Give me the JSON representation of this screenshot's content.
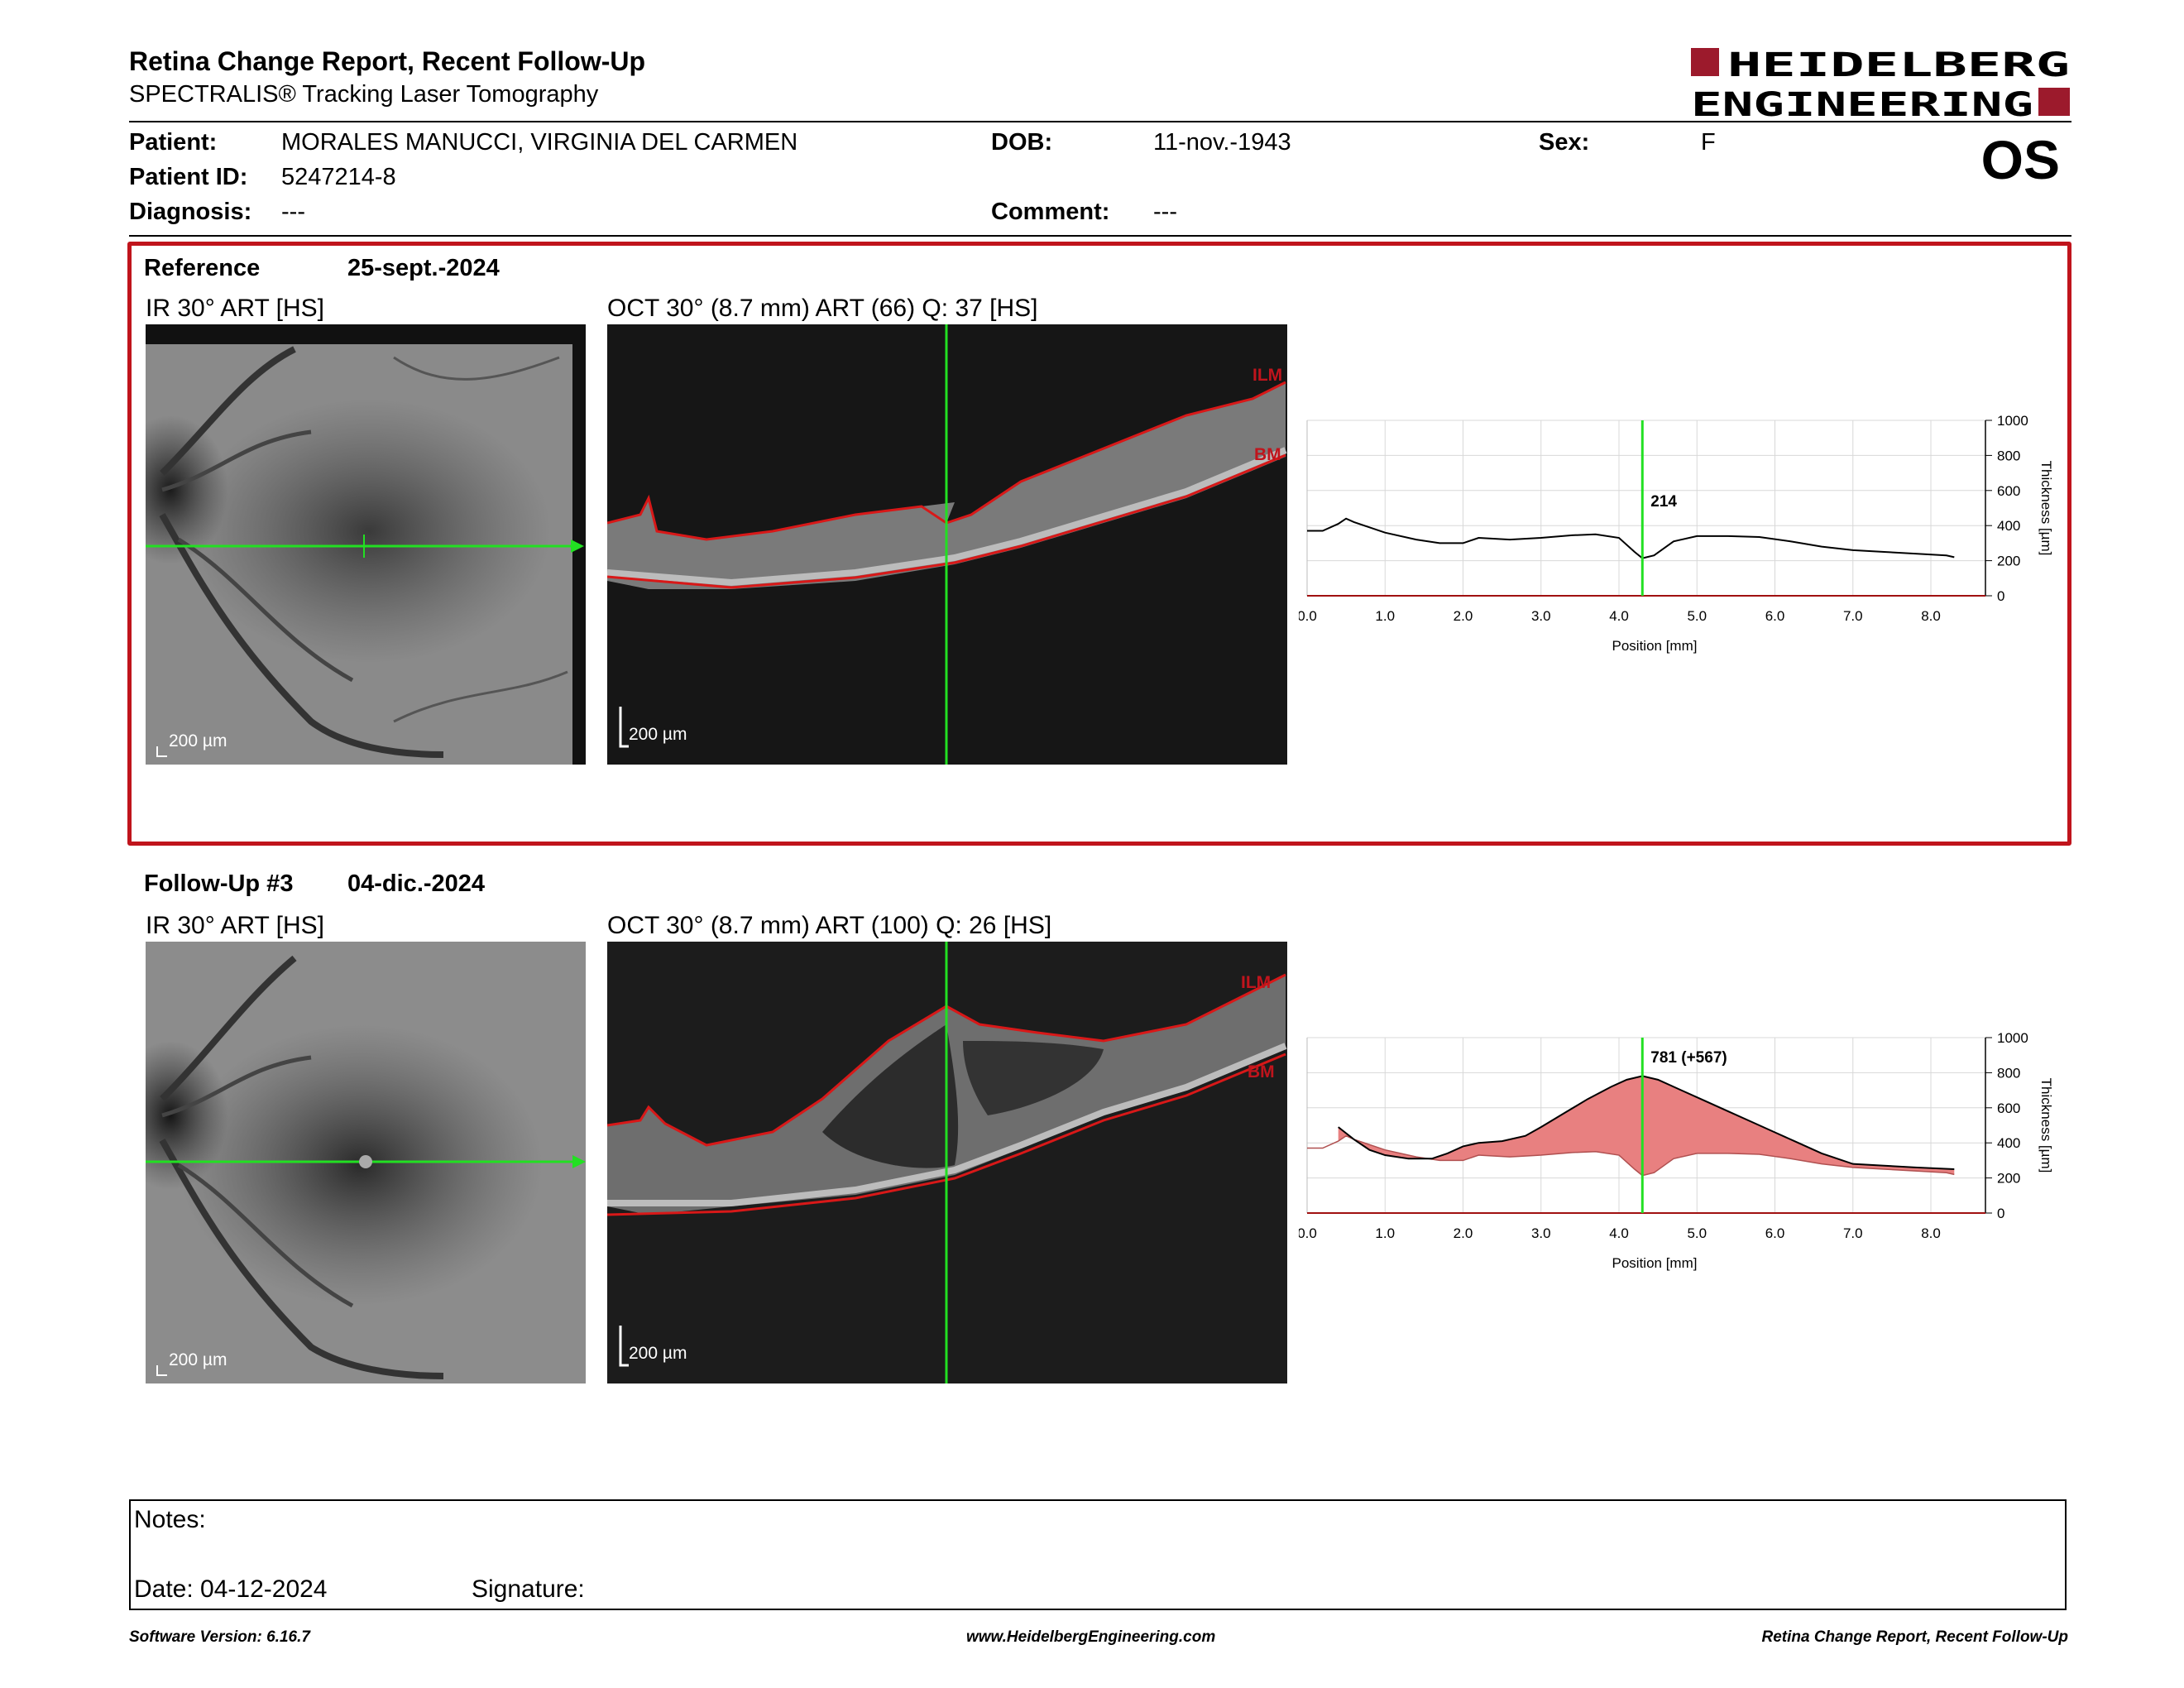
{
  "header": {
    "title": "Retina Change Report, Recent Follow-Up",
    "subtitle": "SPECTRALIS® Tracking Laser Tomography",
    "logo_line1": "HEIDELBERG",
    "logo_line2": "ENGINEERING",
    "eye": "OS"
  },
  "patient": {
    "name_label": "Patient:",
    "name": "MORALES MANUCCI, VIRGINIA DEL CARMEN",
    "dob_label": "DOB:",
    "dob": "11-nov.-1943",
    "sex_label": "Sex:",
    "sex": "F",
    "id_label": "Patient ID:",
    "id": "5247214-8",
    "diagnosis_label": "Diagnosis:",
    "diagnosis": "---",
    "comment_label": "Comment:",
    "comment": "---"
  },
  "reference": {
    "label": "Reference",
    "date": "25-sept.-2024",
    "ir_label": "IR 30° ART [HS]",
    "oct_label": "OCT 30° (8.7 mm) ART (66) Q: 37 [HS]",
    "ir_scale": "200 µm",
    "oct_scale": "200 µm",
    "ilm": "ILM",
    "bm": "BM"
  },
  "followup": {
    "label": "Follow-Up #3",
    "date": "04-dic.-2024",
    "ir_label": "IR 30° ART [HS]",
    "oct_label": "OCT 30° (8.7 mm) ART (100) Q: 26 [HS]",
    "ir_scale": "200 µm",
    "oct_scale": "200 µm",
    "ilm": "ILM",
    "bm": "BM"
  },
  "chart_data": [
    {
      "type": "line",
      "xlabel": "Position [mm]",
      "ylabel": "Thickness [µm]",
      "xlim": [
        0,
        8.7
      ],
      "ylim": [
        0,
        1000
      ],
      "xticks": [
        "0.0",
        "1.0",
        "2.0",
        "3.0",
        "4.0",
        "5.0",
        "6.0",
        "7.0",
        "8.0"
      ],
      "yticks": [
        "0",
        "200",
        "400",
        "600",
        "800",
        "1000"
      ],
      "marker_x": 4.3,
      "marker_label": "214",
      "series": [
        {
          "x": [
            0.0,
            0.2,
            0.4,
            0.5,
            0.6,
            0.8,
            1.0,
            1.4,
            1.7,
            2.0,
            2.2,
            2.6,
            3.0,
            3.4,
            3.7,
            4.0,
            4.2,
            4.3,
            4.45,
            4.7,
            5.0,
            5.4,
            5.8,
            6.2,
            6.6,
            7.0,
            7.4,
            7.8,
            8.2,
            8.3
          ],
          "y": [
            370,
            370,
            410,
            440,
            420,
            390,
            360,
            320,
            300,
            300,
            330,
            320,
            330,
            345,
            350,
            330,
            250,
            214,
            230,
            310,
            340,
            340,
            335,
            310,
            280,
            260,
            250,
            240,
            230,
            220
          ]
        }
      ]
    },
    {
      "type": "area",
      "xlabel": "Position [mm]",
      "ylabel": "Thickness [µm]",
      "xlim": [
        0,
        8.7
      ],
      "ylim": [
        0,
        1000
      ],
      "xticks": [
        "0.0",
        "1.0",
        "2.0",
        "3.0",
        "4.0",
        "5.0",
        "6.0",
        "7.0",
        "8.0"
      ],
      "yticks": [
        "0",
        "200",
        "400",
        "600",
        "800",
        "1000"
      ],
      "marker_x": 4.3,
      "marker_label": "781 (+567)",
      "series": [
        {
          "x": [
            0.4,
            0.6,
            0.8,
            1.0,
            1.3,
            1.6,
            1.8,
            2.0,
            2.2,
            2.5,
            2.8,
            3.0,
            3.3,
            3.6,
            3.9,
            4.1,
            4.3,
            4.5,
            4.8,
            5.1,
            5.4,
            5.7,
            6.0,
            6.3,
            6.6,
            7.0,
            7.4,
            7.8,
            8.3
          ],
          "y": [
            490,
            420,
            360,
            330,
            310,
            310,
            340,
            380,
            400,
            410,
            440,
            490,
            570,
            650,
            720,
            760,
            781,
            760,
            700,
            640,
            580,
            520,
            460,
            400,
            340,
            280,
            270,
            260,
            250
          ]
        },
        {
          "x": [
            0.0,
            0.2,
            0.4,
            0.5,
            0.6,
            0.8,
            1.0,
            1.4,
            1.7,
            2.0,
            2.2,
            2.6,
            3.0,
            3.4,
            3.7,
            4.0,
            4.2,
            4.3,
            4.45,
            4.7,
            5.0,
            5.4,
            5.8,
            6.2,
            6.6,
            7.0,
            7.4,
            7.8,
            8.2,
            8.3
          ],
          "y": [
            370,
            370,
            410,
            440,
            420,
            390,
            360,
            320,
            300,
            300,
            330,
            320,
            330,
            345,
            350,
            330,
            250,
            214,
            230,
            310,
            340,
            340,
            335,
            310,
            280,
            260,
            250,
            240,
            230,
            220
          ]
        }
      ]
    }
  ],
  "notes": {
    "notes_label": "Notes:",
    "date_label": "Date: 04-12-2024",
    "signature_label": "Signature:"
  },
  "footer": {
    "left": "Software Version: 6.16.7",
    "center": "www.HeidelbergEngineering.com",
    "right": "Retina Change Report, Recent Follow-Up"
  },
  "colors": {
    "accent_red": "#c0141c",
    "scan_green": "#22e022",
    "fill_red": "#e88080"
  }
}
